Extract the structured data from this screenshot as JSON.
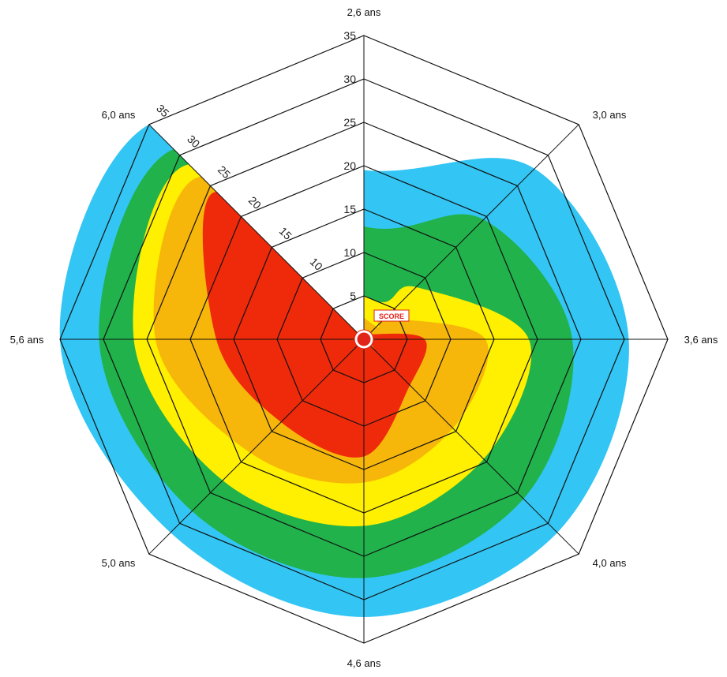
{
  "chart_data": {
    "type": "radar",
    "axes": [
      "2,6 ans",
      "3,0 ans",
      "3,6 ans",
      "4,0 ans",
      "4,6 ans",
      "5,0 ans",
      "5,6 ans",
      "6,0 ans"
    ],
    "ticks": [
      "5",
      "10",
      "15",
      "20",
      "25",
      "30",
      "35"
    ],
    "rmax": 35,
    "center_label": "SCORE",
    "zones": [
      {
        "color": "#33c5f3",
        "values": [
          19.5,
          27.8,
          30.5,
          31.5,
          32.0,
          31.5,
          35.0,
          35.0
        ]
      },
      {
        "color": "#21b24b",
        "values": [
          13.0,
          19.5,
          24.0,
          26.0,
          27.5,
          28.0,
          30.5,
          31.0
        ]
      },
      {
        "color": "#ffef00",
        "values": [
          5.0,
          8.5,
          19.0,
          19.5,
          21.5,
          23.0,
          26.5,
          28.5
        ]
      },
      {
        "color": "#f7b60a",
        "values": [
          2.5,
          3.5,
          14.0,
          14.5,
          16.5,
          18.5,
          24.0,
          26.5
        ]
      },
      {
        "color": "#ee2a0b",
        "values": [
          0.0,
          0.8,
          7.0,
          7.5,
          13.5,
          13.5,
          17.0,
          24.0
        ]
      }
    ]
  }
}
